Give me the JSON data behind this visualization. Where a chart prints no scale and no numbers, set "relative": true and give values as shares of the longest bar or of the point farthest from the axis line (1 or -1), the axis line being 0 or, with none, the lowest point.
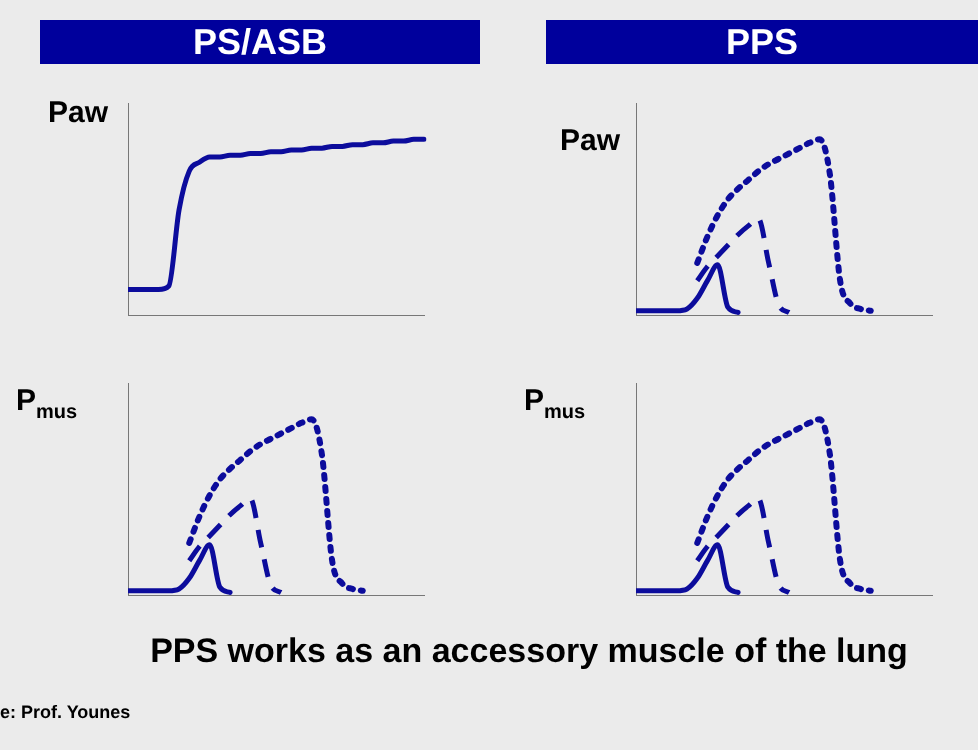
{
  "chart_data": [
    {
      "type": "line",
      "title": "PS/ASB",
      "ylabel": "Paw",
      "relative": true,
      "grid": false,
      "legend": false,
      "tick_labels": false,
      "marker": "none",
      "categories": [
        null,
        null,
        null,
        null,
        null,
        null,
        null,
        null,
        null,
        null,
        null,
        null,
        null,
        null,
        null,
        null,
        null,
        null,
        null,
        null,
        null,
        null,
        null,
        null,
        null,
        null,
        null,
        null,
        null,
        null
      ],
      "series": [
        {
          "color": "#0c0c9c",
          "line_style": "solid",
          "values": [
            0.15,
            0.15,
            0.15,
            0.15,
            0.17,
            0.6,
            0.82,
            0.87,
            0.9,
            0.9,
            0.91,
            0.91,
            0.92,
            0.92,
            0.93,
            0.93,
            0.94,
            0.94,
            0.95,
            0.95,
            0.96,
            0.96,
            0.97,
            0.97,
            0.98,
            0.98,
            0.99,
            0.99,
            1,
            1
          ]
        }
      ]
    },
    {
      "type": "line",
      "title": "PPS",
      "ylabel": "Paw",
      "relative": true,
      "grid": false,
      "legend": false,
      "tick_labels": false,
      "marker": "none",
      "categories": [
        null,
        null,
        null,
        null,
        null,
        null,
        null,
        null,
        null,
        null,
        null,
        null,
        null,
        null,
        null,
        null,
        null,
        null,
        null,
        null,
        null,
        null,
        null,
        null,
        null,
        null,
        null,
        null,
        null,
        null
      ],
      "series": [
        {
          "color": "#0c0c9c",
          "line_style": "solid",
          "values": [
            0.03,
            0.03,
            0.03,
            0.03,
            0.03,
            0.04,
            0.1,
            0.2,
            0.29,
            0.05,
            0.02,
            null,
            null,
            null,
            null,
            null,
            null,
            null,
            null,
            null,
            null,
            null,
            null,
            null,
            null,
            null,
            null,
            null,
            null,
            null
          ]
        },
        {
          "color": "#0c0c9c",
          "line_style": "dashed",
          "values": [
            null,
            null,
            null,
            null,
            null,
            null,
            0.2,
            0.28,
            0.34,
            0.4,
            0.46,
            0.51,
            0.55,
            0.3,
            0.06,
            0.02,
            null,
            null,
            null,
            null,
            null,
            null,
            null,
            null,
            null,
            null,
            null,
            null,
            null,
            null
          ]
        },
        {
          "color": "#0c0c9c",
          "line_style": "dotted",
          "values": [
            null,
            null,
            null,
            null,
            null,
            null,
            0.3,
            0.45,
            0.57,
            0.66,
            0.72,
            0.77,
            0.82,
            0.86,
            0.89,
            0.92,
            0.95,
            0.98,
            1,
            0.8,
            0.2,
            0.07,
            0.04,
            0.03,
            null,
            null,
            null,
            null,
            null,
            null
          ]
        }
      ]
    },
    {
      "type": "line",
      "ylabel": "P$_{mus}$",
      "relative": true,
      "grid": false,
      "legend": false,
      "tick_labels": false,
      "marker": "none",
      "categories": [
        null,
        null,
        null,
        null,
        null,
        null,
        null,
        null,
        null,
        null,
        null,
        null,
        null,
        null,
        null,
        null,
        null,
        null,
        null,
        null,
        null,
        null,
        null,
        null,
        null,
        null,
        null,
        null,
        null,
        null
      ],
      "series": [
        {
          "color": "#0c0c9c",
          "line_style": "solid",
          "values": [
            0.03,
            0.03,
            0.03,
            0.03,
            0.03,
            0.04,
            0.1,
            0.2,
            0.29,
            0.05,
            0.02,
            null,
            null,
            null,
            null,
            null,
            null,
            null,
            null,
            null,
            null,
            null,
            null,
            null,
            null,
            null,
            null,
            null,
            null,
            null
          ]
        },
        {
          "color": "#0c0c9c",
          "line_style": "dashed",
          "values": [
            null,
            null,
            null,
            null,
            null,
            null,
            0.2,
            0.28,
            0.34,
            0.4,
            0.46,
            0.51,
            0.55,
            0.3,
            0.06,
            0.02,
            null,
            null,
            null,
            null,
            null,
            null,
            null,
            null,
            null,
            null,
            null,
            null,
            null,
            null
          ]
        },
        {
          "color": "#0c0c9c",
          "line_style": "dotted",
          "values": [
            null,
            null,
            null,
            null,
            null,
            null,
            0.3,
            0.45,
            0.57,
            0.66,
            0.72,
            0.77,
            0.82,
            0.86,
            0.89,
            0.92,
            0.95,
            0.98,
            1,
            0.8,
            0.2,
            0.07,
            0.04,
            0.03,
            null,
            null,
            null,
            null,
            null,
            null
          ]
        }
      ]
    },
    {
      "type": "line",
      "ylabel": "P$_{mus}$",
      "relative": true,
      "grid": false,
      "legend": false,
      "tick_labels": false,
      "marker": "none",
      "categories": [
        null,
        null,
        null,
        null,
        null,
        null,
        null,
        null,
        null,
        null,
        null,
        null,
        null,
        null,
        null,
        null,
        null,
        null,
        null,
        null,
        null,
        null,
        null,
        null,
        null,
        null,
        null,
        null,
        null,
        null
      ],
      "series": [
        {
          "color": "#0c0c9c",
          "line_style": "solid",
          "values": [
            0.03,
            0.03,
            0.03,
            0.03,
            0.03,
            0.04,
            0.1,
            0.2,
            0.29,
            0.05,
            0.02,
            null,
            null,
            null,
            null,
            null,
            null,
            null,
            null,
            null,
            null,
            null,
            null,
            null,
            null,
            null,
            null,
            null,
            null,
            null
          ]
        },
        {
          "color": "#0c0c9c",
          "line_style": "dashed",
          "values": [
            null,
            null,
            null,
            null,
            null,
            null,
            0.2,
            0.28,
            0.34,
            0.4,
            0.46,
            0.51,
            0.55,
            0.3,
            0.06,
            0.02,
            null,
            null,
            null,
            null,
            null,
            null,
            null,
            null,
            null,
            null,
            null,
            null,
            null,
            null
          ]
        },
        {
          "color": "#0c0c9c",
          "line_style": "dotted",
          "values": [
            null,
            null,
            null,
            null,
            null,
            null,
            0.3,
            0.45,
            0.57,
            0.66,
            0.72,
            0.77,
            0.82,
            0.86,
            0.89,
            0.92,
            0.95,
            0.98,
            1,
            0.8,
            0.2,
            0.07,
            0.04,
            0.03,
            null,
            null,
            null,
            null,
            null,
            null
          ]
        }
      ],
      "annotations": [
        "PPS works as an accessory muscle of the lung",
        "e: Prof. Younes"
      ]
    }
  ]
}
